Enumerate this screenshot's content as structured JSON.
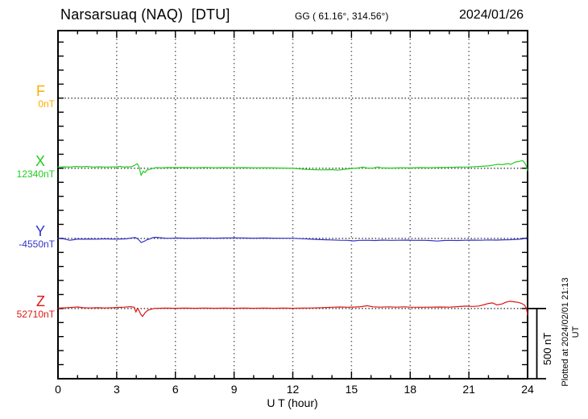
{
  "header": {
    "station_title": "Narsarsuaq (NAQ)  [DTU]",
    "coordinates": "GG ( 61.16°, 314.56°)",
    "date": "2024/01/26"
  },
  "axis": {
    "xlabel": "U T (hour)",
    "x_tick_labels": [
      "0",
      "3",
      "6",
      "9",
      "12",
      "15",
      "18",
      "21",
      "24"
    ]
  },
  "scale_bar_label": "500 nT",
  "footer_note": "Plotted at 2024/02/01 21:13 UT",
  "chart_data": {
    "type": "line",
    "title": "Narsarsuaq (NAQ)  [DTU]",
    "date": "2024/01/26",
    "xlabel": "U T (hour)",
    "x_range_hours": [
      0,
      24
    ],
    "x_major_tick_hours": [
      0,
      3,
      6,
      9,
      12,
      15,
      18,
      21,
      24
    ],
    "x_minor_tick_step_hours": 1,
    "y_minor_tick_nT": 100,
    "grid": "dotted vertical lines every 3 h; dotted horizontal line at each component baseline",
    "scale_bar": {
      "label": "500 nT",
      "nT": 500
    },
    "components": [
      {
        "name": "F",
        "baseline_label": "0nT",
        "baseline_nT": 0,
        "color": "#FFAA00",
        "trace_visible": false
      },
      {
        "name": "X",
        "baseline_label": "12340nT",
        "baseline_nT": 12340,
        "color": "#22CC22",
        "trace_visible": true
      },
      {
        "name": "Y",
        "baseline_label": "-4550nT",
        "baseline_nT": -4550,
        "color": "#3333CC",
        "trace_visible": true
      },
      {
        "name": "Z",
        "baseline_label": "52710nT",
        "baseline_nT": 52710,
        "color": "#DD1515",
        "trace_visible": true
      }
    ],
    "series": [
      {
        "name": "X",
        "color": "#22CC22",
        "baseline_nT": 12340,
        "points_hour_deltaNT": [
          [
            0,
            9
          ],
          [
            0.3,
            11
          ],
          [
            0.6,
            9
          ],
          [
            0.9,
            13
          ],
          [
            1.2,
            11
          ],
          [
            1.5,
            13
          ],
          [
            1.8,
            9
          ],
          [
            2.1,
            11
          ],
          [
            2.4,
            9
          ],
          [
            2.7,
            10
          ],
          [
            3,
            11
          ],
          [
            3.2,
            14
          ],
          [
            3.35,
            9
          ],
          [
            3.5,
            11
          ],
          [
            3.65,
            10
          ],
          [
            3.8,
            14
          ],
          [
            3.95,
            25
          ],
          [
            4.05,
            33
          ],
          [
            4.15,
            8
          ],
          [
            4.25,
            -50
          ],
          [
            4.35,
            -20
          ],
          [
            4.45,
            -30
          ],
          [
            4.55,
            -12
          ],
          [
            4.7,
            -7
          ],
          [
            4.85,
            0
          ],
          [
            5,
            5
          ],
          [
            5.3,
            3
          ],
          [
            5.6,
            6
          ],
          [
            6,
            5
          ],
          [
            6.5,
            6
          ],
          [
            7,
            4
          ],
          [
            7.5,
            6
          ],
          [
            8,
            4
          ],
          [
            8.5,
            5
          ],
          [
            9,
            4
          ],
          [
            9.5,
            5
          ],
          [
            10,
            3
          ],
          [
            10.5,
            4
          ],
          [
            11,
            3
          ],
          [
            11.5,
            2
          ],
          [
            12,
            0
          ],
          [
            12.5,
            -6
          ],
          [
            13,
            -9
          ],
          [
            13.5,
            -11
          ],
          [
            14,
            -9
          ],
          [
            14.3,
            -13
          ],
          [
            14.7,
            -6
          ],
          [
            15,
            -2
          ],
          [
            15.3,
            2
          ],
          [
            15.6,
            9
          ],
          [
            15.8,
            2
          ],
          [
            16.1,
            1
          ],
          [
            16.35,
            10
          ],
          [
            16.55,
            3
          ],
          [
            17,
            2
          ],
          [
            17.5,
            4
          ],
          [
            18,
            3
          ],
          [
            18.5,
            5
          ],
          [
            19,
            4
          ],
          [
            19.5,
            6
          ],
          [
            20,
            7
          ],
          [
            20.5,
            9
          ],
          [
            21,
            10
          ],
          [
            21.5,
            13
          ],
          [
            22,
            17
          ],
          [
            22.3,
            24
          ],
          [
            22.5,
            29
          ],
          [
            22.7,
            26
          ],
          [
            23,
            34
          ],
          [
            23.15,
            29
          ],
          [
            23.35,
            43
          ],
          [
            23.55,
            49
          ],
          [
            23.75,
            55
          ],
          [
            23.85,
            40
          ],
          [
            23.95,
            9
          ],
          [
            24,
            -17
          ]
        ]
      },
      {
        "name": "Y",
        "color": "#3333CC",
        "baseline_nT": -4550,
        "points_hour_deltaNT": [
          [
            0,
            0
          ],
          [
            0.3,
            -3
          ],
          [
            0.6,
            -13
          ],
          [
            0.8,
            -9
          ],
          [
            1,
            -4
          ],
          [
            1.3,
            -6
          ],
          [
            1.6,
            -4
          ],
          [
            2,
            -5
          ],
          [
            2.4,
            -3
          ],
          [
            2.8,
            -5
          ],
          [
            3.2,
            -4
          ],
          [
            3.5,
            -3
          ],
          [
            3.8,
            4
          ],
          [
            3.95,
            7
          ],
          [
            4.1,
            -6
          ],
          [
            4.25,
            -29
          ],
          [
            4.4,
            -21
          ],
          [
            4.55,
            -9
          ],
          [
            4.7,
            -3
          ],
          [
            4.85,
            6
          ],
          [
            5,
            8
          ],
          [
            5.2,
            5
          ],
          [
            5.5,
            2
          ],
          [
            5.8,
            1
          ],
          [
            6.1,
            3
          ],
          [
            6.5,
            2
          ],
          [
            7,
            2
          ],
          [
            7.5,
            3
          ],
          [
            8,
            2
          ],
          [
            8.5,
            3
          ],
          [
            9,
            4
          ],
          [
            9.5,
            3
          ],
          [
            10,
            2
          ],
          [
            10.5,
            3
          ],
          [
            11,
            2
          ],
          [
            11.5,
            1
          ],
          [
            12,
            1
          ],
          [
            12.4,
            -2
          ],
          [
            12.8,
            -4
          ],
          [
            13.2,
            -7
          ],
          [
            13.6,
            -9
          ],
          [
            14,
            -11
          ],
          [
            14.4,
            -13
          ],
          [
            14.8,
            -14
          ],
          [
            15.1,
            -18
          ],
          [
            15.4,
            -14
          ],
          [
            15.8,
            -13
          ],
          [
            16.2,
            -15
          ],
          [
            16.6,
            -12
          ],
          [
            17,
            -14
          ],
          [
            17.4,
            -13
          ],
          [
            17.8,
            -12
          ],
          [
            18.2,
            -14
          ],
          [
            18.6,
            -13
          ],
          [
            19,
            -15
          ],
          [
            19.4,
            -19
          ],
          [
            19.7,
            -15
          ],
          [
            20,
            -14
          ],
          [
            20.4,
            -15
          ],
          [
            20.8,
            -13
          ],
          [
            21.2,
            -12
          ],
          [
            21.6,
            -13
          ],
          [
            22,
            -11
          ],
          [
            22.4,
            -12
          ],
          [
            22.8,
            -10
          ],
          [
            23.1,
            -9
          ],
          [
            23.4,
            -7
          ],
          [
            23.7,
            -4
          ],
          [
            23.9,
            2
          ],
          [
            24,
            9
          ]
        ]
      },
      {
        "name": "Z",
        "color": "#DD1515",
        "baseline_nT": 52710,
        "points_hour_deltaNT": [
          [
            0,
            3
          ],
          [
            0.4,
            5
          ],
          [
            0.8,
            9
          ],
          [
            1,
            11
          ],
          [
            1.3,
            6
          ],
          [
            1.6,
            4
          ],
          [
            2,
            6
          ],
          [
            2.4,
            4
          ],
          [
            2.8,
            6
          ],
          [
            3.1,
            8
          ],
          [
            3.4,
            10
          ],
          [
            3.7,
            13
          ],
          [
            3.9,
            9
          ],
          [
            3.98,
            -25
          ],
          [
            4.06,
            2
          ],
          [
            4.14,
            -15
          ],
          [
            4.22,
            -38
          ],
          [
            4.32,
            -57
          ],
          [
            4.45,
            -30
          ],
          [
            4.6,
            -12
          ],
          [
            4.75,
            -5
          ],
          [
            4.9,
            0
          ],
          [
            5.1,
            2
          ],
          [
            5.5,
            3
          ],
          [
            6,
            2
          ],
          [
            6.5,
            3
          ],
          [
            7,
            2
          ],
          [
            7.5,
            3
          ],
          [
            8,
            2
          ],
          [
            8.5,
            3
          ],
          [
            9,
            2
          ],
          [
            9.5,
            3
          ],
          [
            10,
            2
          ],
          [
            10.5,
            3
          ],
          [
            11,
            2
          ],
          [
            11.5,
            3
          ],
          [
            12,
            2
          ],
          [
            12.5,
            3
          ],
          [
            13,
            4
          ],
          [
            13.5,
            6
          ],
          [
            14,
            9
          ],
          [
            14.4,
            11
          ],
          [
            14.8,
            9
          ],
          [
            15.2,
            11
          ],
          [
            15.5,
            13
          ],
          [
            15.8,
            20
          ],
          [
            16.1,
            12
          ],
          [
            16.5,
            10
          ],
          [
            16.9,
            12
          ],
          [
            17.3,
            10
          ],
          [
            17.7,
            12
          ],
          [
            18,
            10
          ],
          [
            18.5,
            9
          ],
          [
            19,
            10
          ],
          [
            19.5,
            11
          ],
          [
            20,
            10
          ],
          [
            20.4,
            13
          ],
          [
            20.8,
            17
          ],
          [
            21.2,
            15
          ],
          [
            21.5,
            18
          ],
          [
            21.8,
            28
          ],
          [
            22,
            36
          ],
          [
            22.2,
            40
          ],
          [
            22.45,
            26
          ],
          [
            22.7,
            33
          ],
          [
            22.9,
            46
          ],
          [
            23.1,
            52
          ],
          [
            23.3,
            48
          ],
          [
            23.5,
            44
          ],
          [
            23.7,
            36
          ],
          [
            23.85,
            23
          ],
          [
            23.95,
            -6
          ],
          [
            24,
            -46
          ]
        ]
      }
    ]
  }
}
